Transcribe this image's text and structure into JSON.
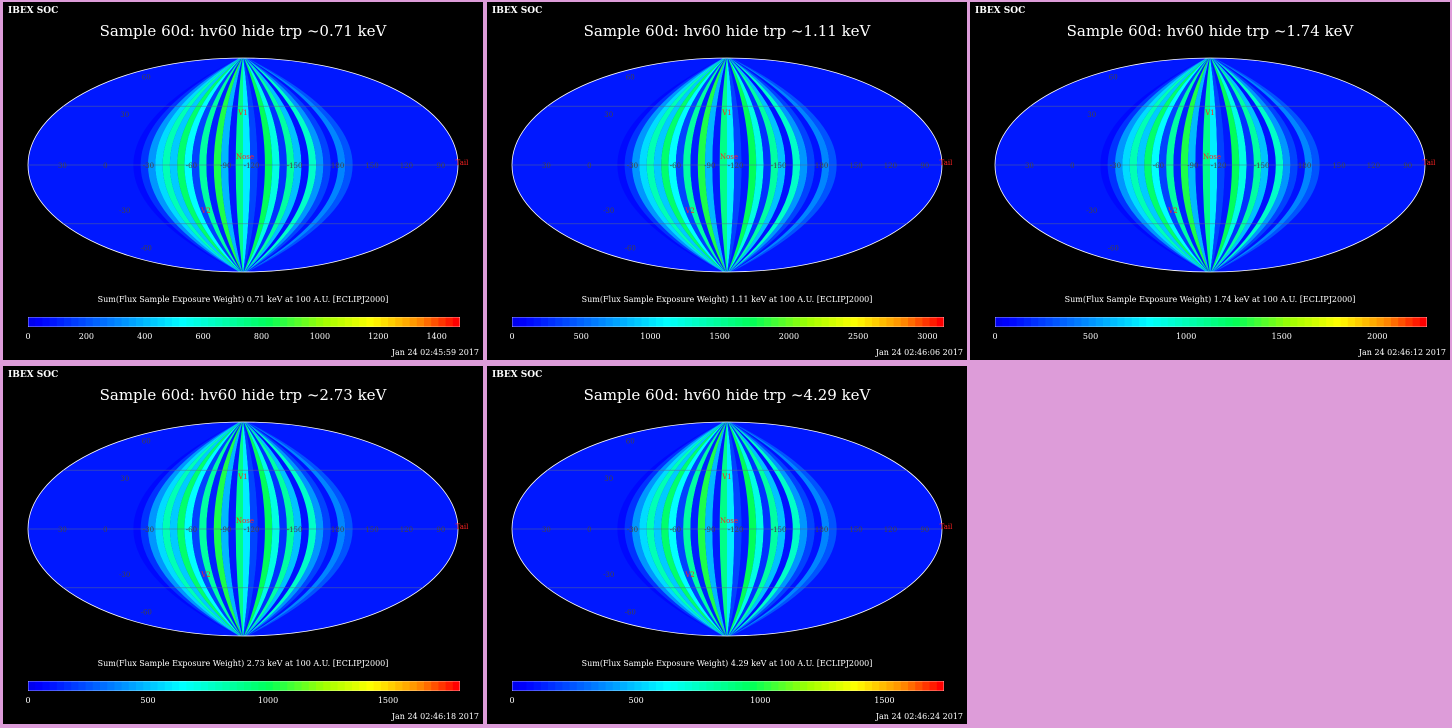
{
  "colors": {
    "page_background": "#dd9cd9",
    "panel_background": "#000000",
    "marker": "#ff2222"
  },
  "chart_data": [
    {
      "type": "heatmap",
      "projection": "mollweide",
      "header": "IBEX SOC",
      "title": "Sample 60d: hv60 hide trp ~0.71 keV",
      "colorbar_label": "Sum(Flux Sample Exposure Weight)  0.71 keV at 100 A.U. [ECLIPJ2000]",
      "colorbar_range": [
        0,
        1480
      ],
      "colorbar_ticks": [
        "0",
        "200",
        "400",
        "600",
        "800",
        "1000",
        "1200",
        "1400"
      ],
      "timestamp": "Jan 24 02:45:59 2017",
      "grid_labels": {
        "lon": [
          "30",
          "0",
          "-30",
          "-60",
          "-90",
          "-120",
          "-150",
          "180",
          "150",
          "120",
          "90"
        ],
        "lat": [
          "60",
          "30",
          "-30",
          "-60"
        ]
      },
      "markers": [
        "V1",
        "Nose",
        "V2",
        "Tail"
      ]
    },
    {
      "type": "heatmap",
      "projection": "mollweide",
      "header": "IBEX SOC",
      "title": "Sample 60d: hv60 hide trp ~1.11 keV",
      "colorbar_label": "Sum(Flux Sample Exposure Weight)  1.11 keV at 100 A.U. [ECLIPJ2000]",
      "colorbar_range": [
        0,
        3120
      ],
      "colorbar_ticks": [
        "0",
        "500",
        "1000",
        "1500",
        "2000",
        "2500",
        "3000"
      ],
      "timestamp": "Jan 24 02:46:06 2017",
      "grid_labels": {
        "lon": [
          "30",
          "0",
          "-30",
          "-60",
          "-90",
          "-120",
          "-150",
          "180",
          "150",
          "120",
          "90"
        ],
        "lat": [
          "60",
          "30",
          "-30",
          "-60"
        ]
      },
      "markers": [
        "V1",
        "Nose",
        "V2",
        "Tail"
      ]
    },
    {
      "type": "heatmap",
      "projection": "mollweide",
      "header": "IBEX SOC",
      "title": "Sample 60d: hv60 hide trp ~1.74 keV",
      "colorbar_label": "Sum(Flux Sample Exposure Weight)  1.74 keV at 100 A.U. [ECLIPJ2000]",
      "colorbar_range": [
        0,
        2260
      ],
      "colorbar_ticks": [
        "0",
        "500",
        "1000",
        "1500",
        "2000"
      ],
      "timestamp": "Jan 24 02:46:12 2017",
      "grid_labels": {
        "lon": [
          "30",
          "0",
          "-30",
          "-60",
          "-90",
          "-120",
          "-150",
          "180",
          "150",
          "120",
          "90"
        ],
        "lat": [
          "60",
          "30",
          "-30",
          "-60"
        ]
      },
      "markers": [
        "V1",
        "Nose",
        "V2",
        "Tail"
      ]
    },
    {
      "type": "heatmap",
      "projection": "mollweide",
      "header": "IBEX SOC",
      "title": "Sample 60d: hv60 hide trp ~2.73 keV",
      "colorbar_label": "Sum(Flux Sample Exposure Weight)  2.73 keV at 100 A.U. [ECLIPJ2000]",
      "colorbar_range": [
        0,
        1800
      ],
      "colorbar_ticks": [
        "0",
        "500",
        "1000",
        "1500"
      ],
      "timestamp": "Jan 24 02:46:18 2017",
      "grid_labels": {
        "lon": [
          "30",
          "0",
          "-30",
          "-60",
          "-90",
          "-120",
          "-150",
          "180",
          "150",
          "120",
          "90"
        ],
        "lat": [
          "60",
          "30",
          "-30",
          "-60"
        ]
      },
      "markers": [
        "V1",
        "Nose",
        "V2",
        "Tail"
      ]
    },
    {
      "type": "heatmap",
      "projection": "mollweide",
      "header": "IBEX SOC",
      "title": "Sample 60d: hv60 hide trp ~4.29 keV",
      "colorbar_label": "Sum(Flux Sample Exposure Weight)  4.29 keV at 100 A.U. [ECLIPJ2000]",
      "colorbar_range": [
        0,
        1740
      ],
      "colorbar_ticks": [
        "0",
        "500",
        "1000",
        "1500"
      ],
      "timestamp": "Jan 24 02:46:24 2017",
      "grid_labels": {
        "lon": [
          "30",
          "0",
          "-30",
          "-60",
          "-90",
          "-120",
          "-150",
          "180",
          "150",
          "120",
          "90"
        ],
        "lat": [
          "60",
          "30",
          "-30",
          "-60"
        ]
      },
      "markers": [
        "V1",
        "Nose",
        "V2",
        "Tail"
      ]
    }
  ]
}
